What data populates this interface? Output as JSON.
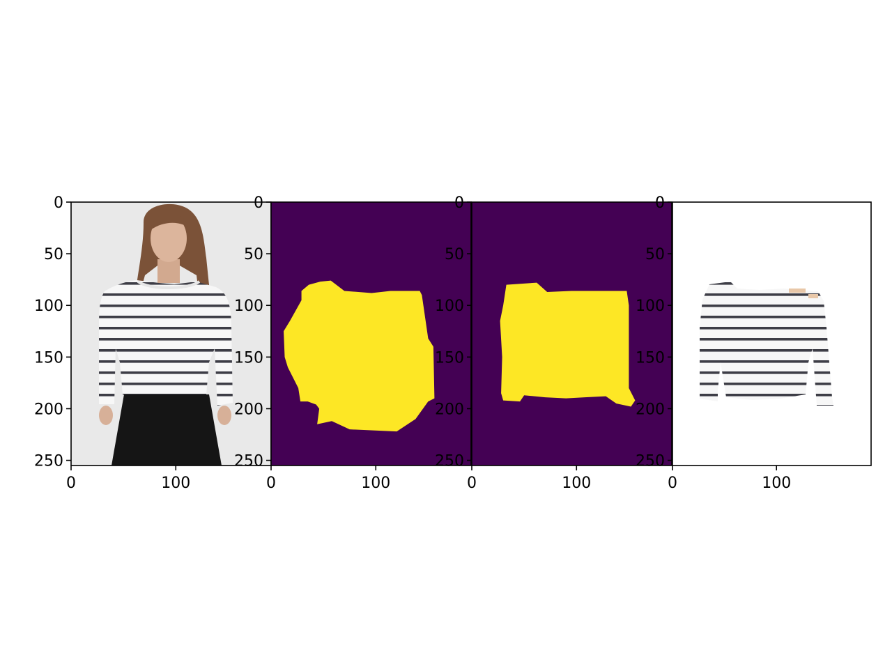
{
  "chart_data": [
    {
      "type": "image",
      "panel": "original photo",
      "xticks": [
        0,
        100
      ],
      "yticks": [
        0,
        50,
        100,
        150,
        200,
        250
      ],
      "xlim": [
        0,
        191
      ],
      "ylim": [
        255,
        0
      ],
      "colors": {
        "background": "#e9e9e9",
        "skin": "#d8b39a",
        "hair": "#7b5238",
        "shirt": "#f7f7f7",
        "stripe": "#3d3d46",
        "skirt": "#151515"
      }
    },
    {
      "type": "heatmap",
      "panel": "segmentation mask",
      "colormap": "viridis",
      "xticks": [
        0,
        100
      ],
      "yticks": [
        0,
        50,
        100,
        150,
        200,
        250
      ],
      "xlim": [
        0,
        191
      ],
      "ylim": [
        255,
        0
      ],
      "colors": {
        "background": "#440154",
        "mask": "#fde725"
      },
      "region_outline": [
        [
          47,
          77
        ],
        [
          57,
          76
        ],
        [
          70,
          86
        ],
        [
          96,
          88
        ],
        [
          114,
          86
        ],
        [
          142,
          86
        ],
        [
          144,
          90
        ],
        [
          150,
          132
        ],
        [
          155,
          140
        ],
        [
          156,
          190
        ],
        [
          150,
          193
        ],
        [
          138,
          210
        ],
        [
          120,
          222
        ],
        [
          75,
          220
        ],
        [
          58,
          212
        ],
        [
          44,
          215
        ],
        [
          46,
          200
        ],
        [
          43,
          196
        ],
        [
          35,
          193
        ],
        [
          28,
          193
        ],
        [
          26,
          180
        ],
        [
          16,
          160
        ],
        [
          13,
          150
        ],
        [
          12,
          125
        ],
        [
          18,
          115
        ],
        [
          29,
          95
        ],
        [
          29,
          86
        ],
        [
          36,
          80
        ]
      ]
    },
    {
      "type": "heatmap",
      "panel": "segmentation mask",
      "colormap": "viridis",
      "xticks": [
        0,
        100
      ],
      "yticks": [
        0,
        50,
        100,
        150,
        200,
        250
      ],
      "xlim": [
        0,
        191
      ],
      "ylim": [
        255,
        0
      ],
      "colors": {
        "background": "#440154",
        "mask": "#fde725"
      },
      "region_outline": [
        [
          33,
          80
        ],
        [
          62,
          78
        ],
        [
          72,
          87
        ],
        [
          95,
          86
        ],
        [
          110,
          86
        ],
        [
          148,
          86
        ],
        [
          150,
          100
        ],
        [
          150,
          180
        ],
        [
          156,
          192
        ],
        [
          152,
          198
        ],
        [
          138,
          195
        ],
        [
          128,
          188
        ],
        [
          108,
          189
        ],
        [
          90,
          190
        ],
        [
          70,
          189
        ],
        [
          50,
          187
        ],
        [
          46,
          193
        ],
        [
          30,
          192
        ],
        [
          28,
          185
        ],
        [
          29,
          150
        ],
        [
          27,
          115
        ],
        [
          30,
          100
        ]
      ]
    },
    {
      "type": "image",
      "panel": "extracted garment",
      "xticks": [
        0,
        100
      ],
      "yticks": [
        0,
        50,
        100,
        150,
        200,
        250
      ],
      "xlim": [
        0,
        191
      ],
      "ylim": [
        255,
        0
      ],
      "colors": {
        "background": "#ffffff",
        "shirt": "#f7f7f7",
        "stripe": "#3d3d46",
        "skin_fragment": "#e8c7a8"
      }
    }
  ]
}
